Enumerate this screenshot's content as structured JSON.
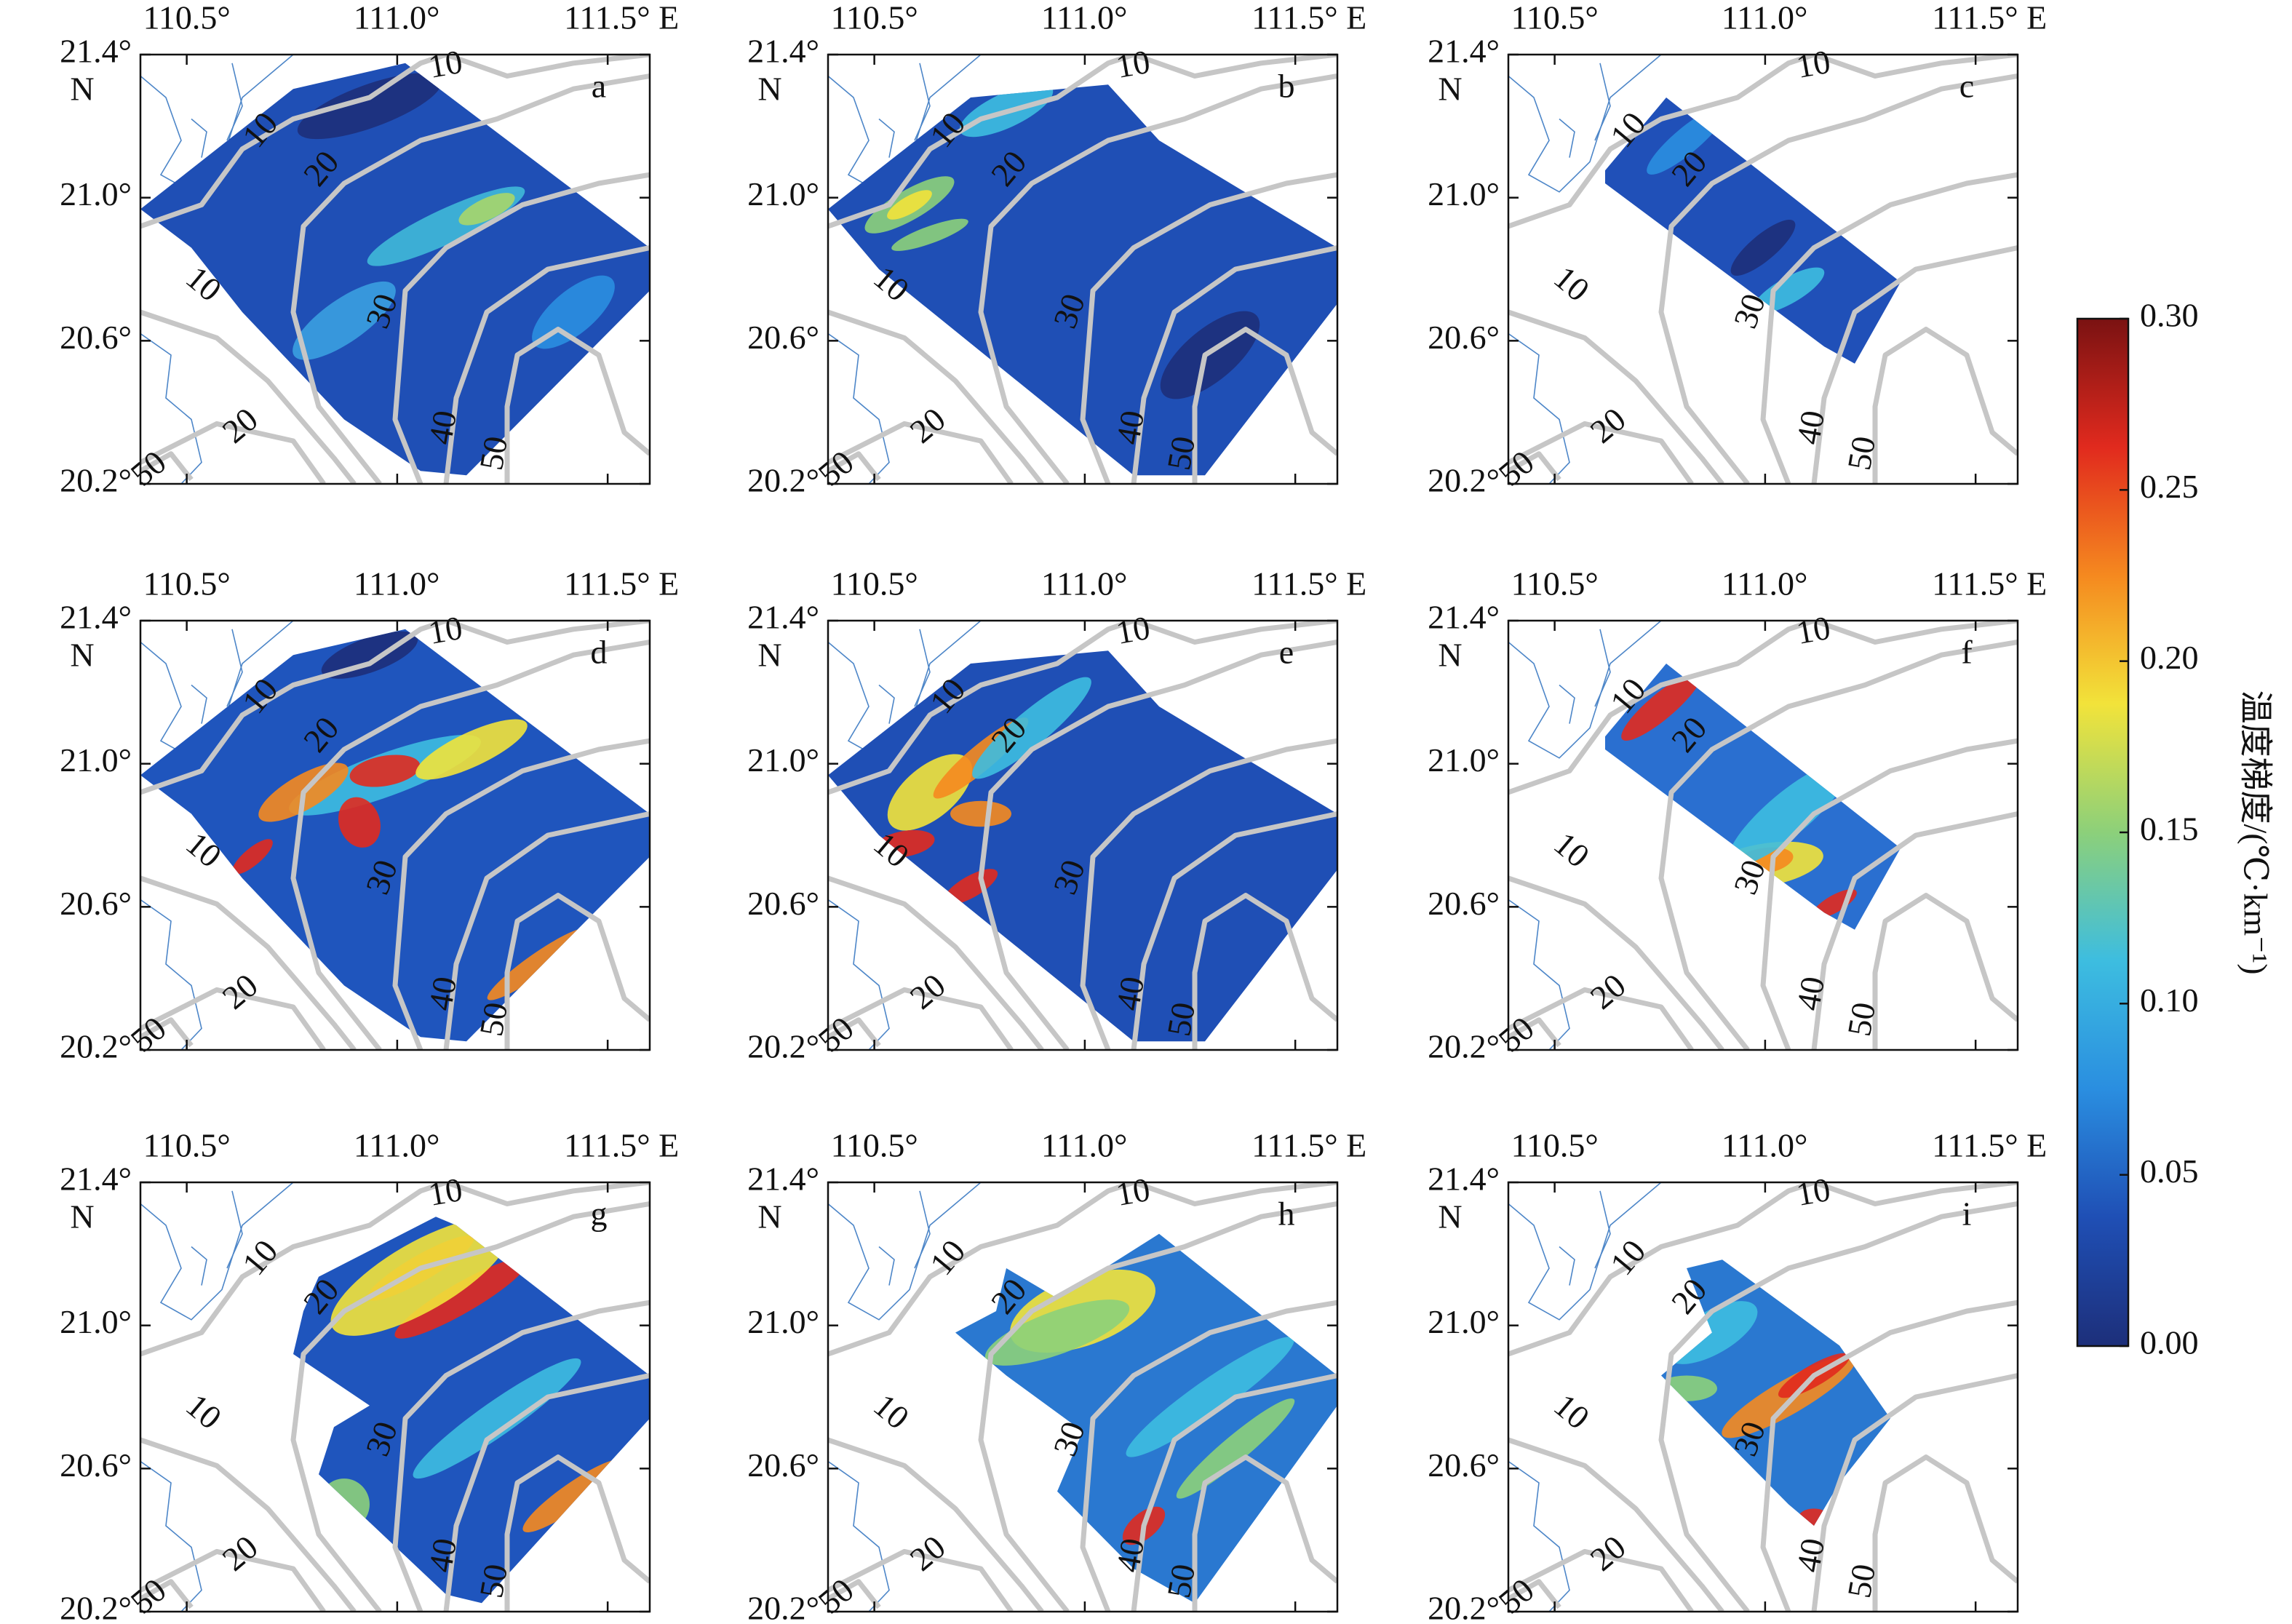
{
  "panels": [
    {
      "label": "a"
    },
    {
      "label": "b"
    },
    {
      "label": "c"
    },
    {
      "label": "d"
    },
    {
      "label": "e"
    },
    {
      "label": "f"
    },
    {
      "label": "g"
    },
    {
      "label": "h"
    },
    {
      "label": "i"
    }
  ],
  "lonlim": [
    110.39,
    111.6
  ],
  "latlim": [
    20.2,
    21.4
  ],
  "lonticks": [
    {
      "value": 110.5,
      "label": "110.5°"
    },
    {
      "value": 111.0,
      "label": "111.0°"
    },
    {
      "value": 111.5,
      "label": "111.5° E"
    }
  ],
  "latticks": [
    {
      "value": 21.4,
      "label": "21.4°"
    },
    {
      "value": 21.0,
      "label": "21.0°"
    },
    {
      "value": 20.6,
      "label": "20.6°"
    },
    {
      "value": 20.2,
      "label": "20.2°"
    }
  ],
  "lat_hemisphere": "N",
  "contour_levels": [
    10,
    20,
    30,
    40,
    50
  ],
  "colorbar": {
    "label": "温度梯度/(℃·km⁻¹)",
    "lim": [
      0,
      0.3
    ],
    "ticks": [
      {
        "value": 0,
        "label": "0.00"
      },
      {
        "value": 0.05,
        "label": "0.05"
      },
      {
        "value": 0.1,
        "label": "0.10"
      },
      {
        "value": 0.15,
        "label": "0.15"
      },
      {
        "value": 0.2,
        "label": "0.20"
      },
      {
        "value": 0.25,
        "label": "0.25"
      },
      {
        "value": 0.3,
        "label": "0.30"
      }
    ],
    "colormap": [
      "#1d2f7a",
      "#1f4fb5",
      "#2a8ee0",
      "#3dbde0",
      "#8cd07a",
      "#f2e33a",
      "#f5891f",
      "#e12a1e",
      "#7a1212"
    ]
  }
}
